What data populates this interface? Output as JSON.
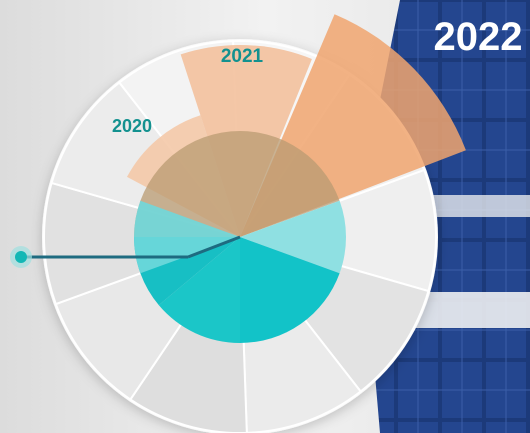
{
  "years": [
    "2020",
    "2021",
    "2022"
  ]
}
